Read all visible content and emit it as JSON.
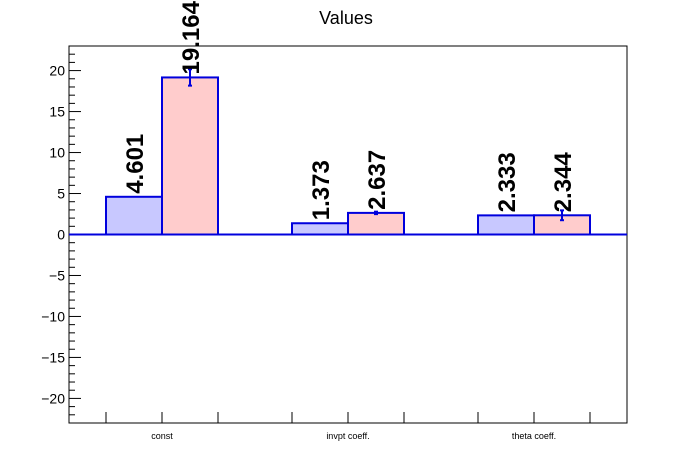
{
  "chart_data": {
    "type": "bar",
    "title": "Values",
    "categories": [
      "const",
      "invpt coeff.",
      "theta coeff."
    ],
    "ylim": [
      -23,
      23
    ],
    "yticks": [
      -20,
      -15,
      -10,
      -5,
      0,
      5,
      10,
      15,
      20
    ],
    "yticks_labels": [
      "−20",
      "−15",
      "−10",
      "−5",
      "0",
      "5",
      "10",
      "15",
      "20"
    ],
    "grid": false,
    "series": [
      {
        "values": [
          4.601,
          1.373,
          2.333
        ],
        "labels": [
          "4.601",
          "1.373",
          "2.333"
        ],
        "errors": [
          0,
          0,
          0
        ],
        "fill": "#c8c8ff",
        "stroke": "#0000dd"
      },
      {
        "values": [
          19.164,
          2.637,
          2.344
        ],
        "labels": [
          "19.164",
          "2.637",
          "2.344"
        ],
        "errors": [
          1.0,
          0.15,
          0.6
        ],
        "fill": "#ffcccc",
        "stroke": "#0000dd"
      }
    ]
  }
}
